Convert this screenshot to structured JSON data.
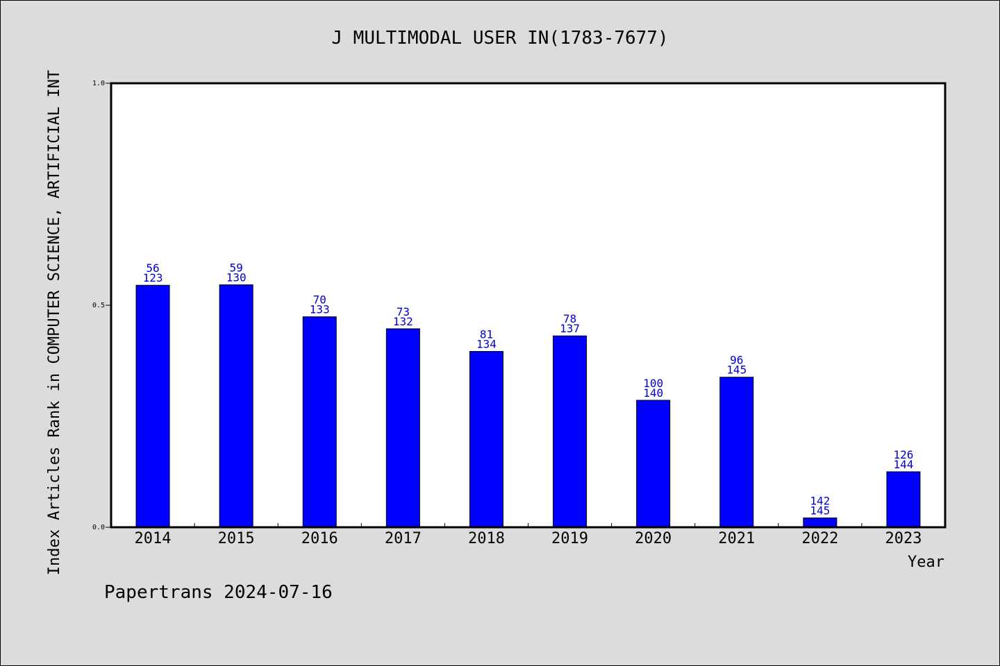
{
  "chart_data": {
    "type": "bar",
    "title": "J MULTIMODAL USER IN(1783-7677)",
    "xlabel": "Year",
    "ylabel": "Index Articles Rank in COMPUTER SCIENCE, ARTIFICIAL INT",
    "ylim": [
      0,
      1
    ],
    "yticks": [
      "0.0",
      "0.5",
      "1.0"
    ],
    "grid": false,
    "categories": [
      "2014",
      "2015",
      "2016",
      "2017",
      "2018",
      "2019",
      "2020",
      "2021",
      "2022",
      "2023"
    ],
    "values": [
      0.545,
      0.546,
      0.474,
      0.447,
      0.396,
      0.431,
      0.286,
      0.338,
      0.021,
      0.125
    ],
    "rank": [
      "56",
      "59",
      "70",
      "73",
      "81",
      "78",
      "100",
      "96",
      "142",
      "126"
    ],
    "total": [
      "123",
      "130",
      "133",
      "132",
      "134",
      "137",
      "140",
      "145",
      "145",
      "144"
    ],
    "bar_color": "#0000ff",
    "label_color": "#0000cc"
  },
  "footer": "Papertrans 2024-07-16"
}
